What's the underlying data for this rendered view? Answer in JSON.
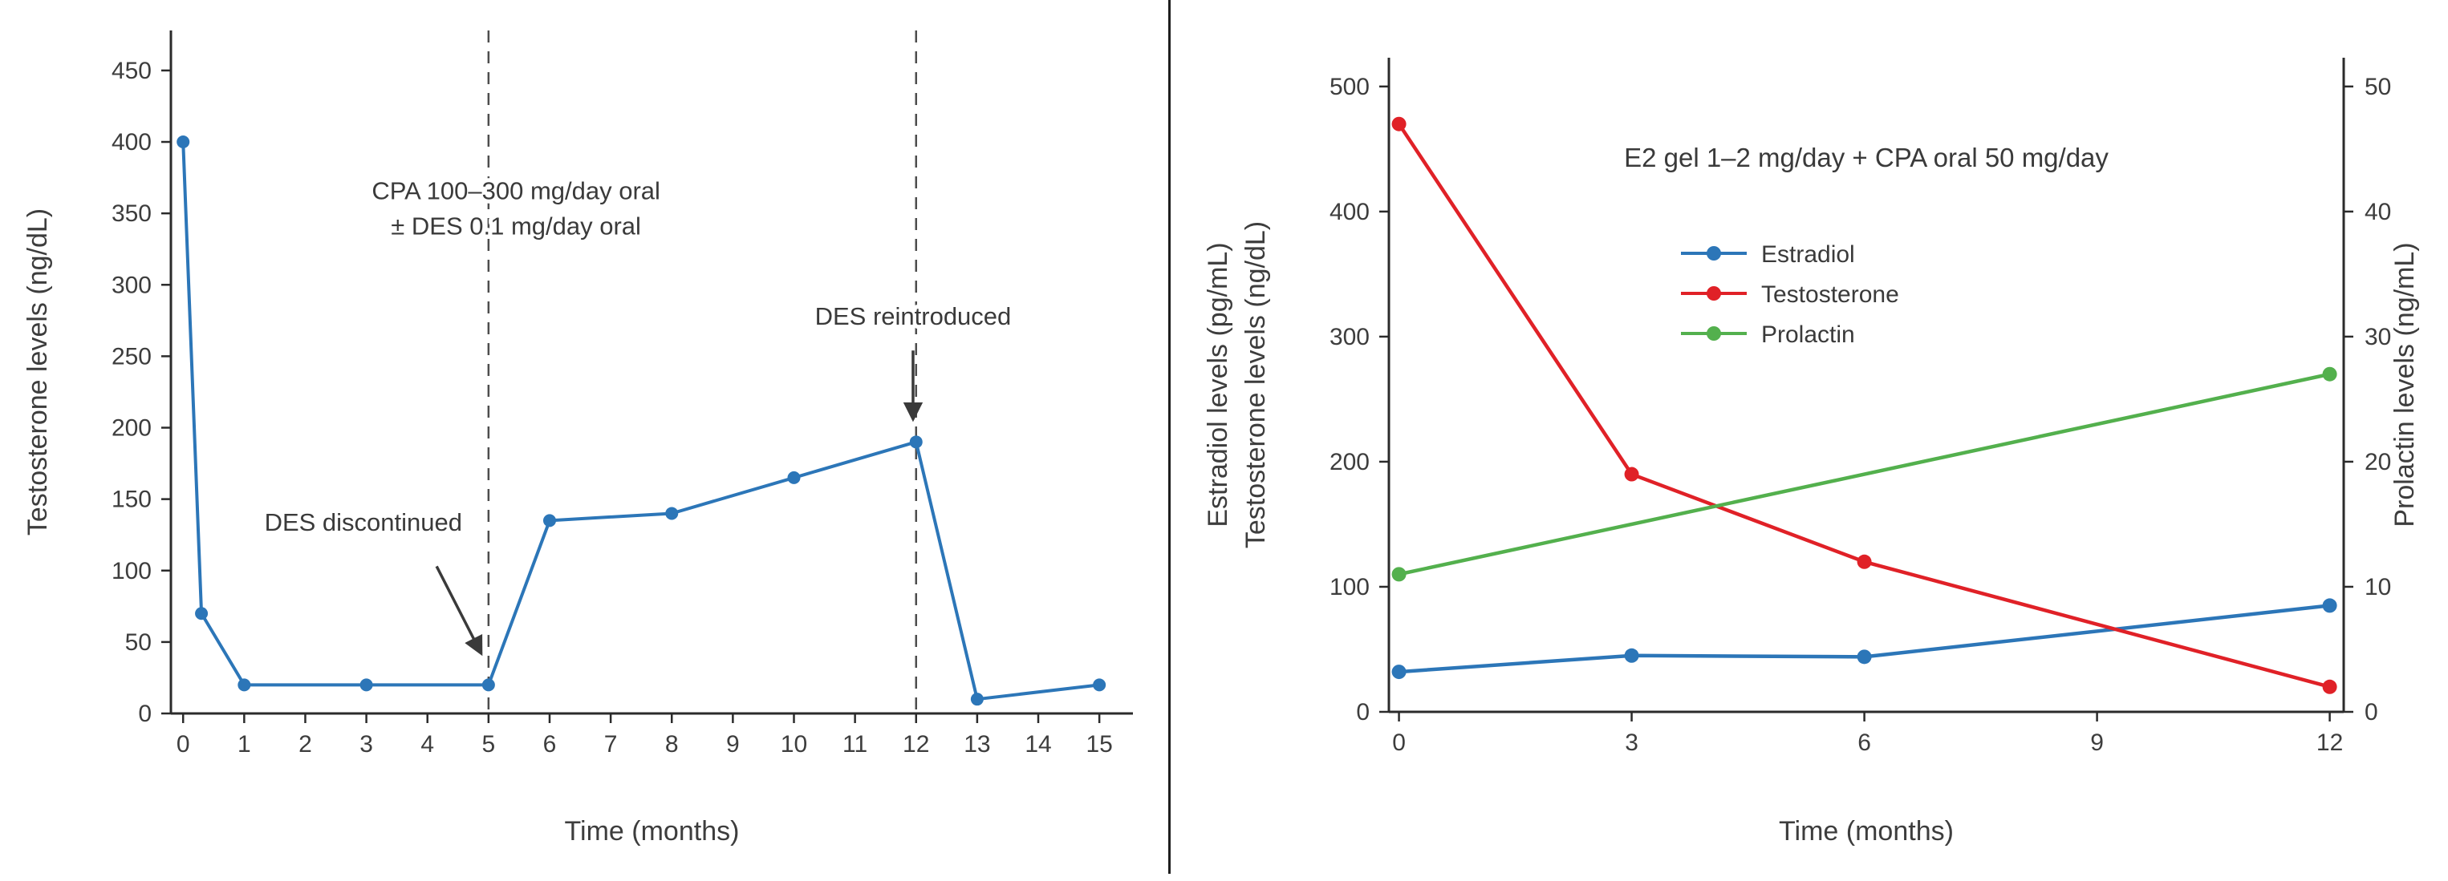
{
  "figure": {
    "background": "#ffffff",
    "divider_color": "#1f1f1f"
  },
  "chart_data": [
    {
      "id": "testosterone-monotherapy-chart",
      "type": "line",
      "title": "",
      "xlabel": "Time (months)",
      "ylabel": "Testosterone levels (ng/dL)",
      "xlim": [
        -0.2,
        15.55
      ],
      "ylim": [
        0,
        478
      ],
      "xticks": [
        0,
        1,
        2,
        3,
        4,
        5,
        6,
        7,
        8,
        9,
        10,
        11,
        12,
        13,
        14,
        15
      ],
      "yticks": [
        0,
        50,
        100,
        150,
        200,
        250,
        300,
        350,
        400,
        450
      ],
      "grid": false,
      "legend": false,
      "series": [
        {
          "name": "Testosterone",
          "color": "#2c76b8",
          "axis": "left",
          "x": [
            0,
            0.3,
            1,
            3,
            5,
            6,
            8,
            10,
            12,
            13,
            15
          ],
          "y": [
            400,
            70,
            20,
            20,
            20,
            135,
            140,
            165,
            190,
            10,
            20
          ]
        }
      ],
      "vlines": [
        5,
        12
      ],
      "annotations": [
        {
          "text": "CPA 100–300 mg/day oral\n± DES 0.1 mg/day oral",
          "x": 5.45,
          "y": 360
        },
        {
          "text": "DES discontinued",
          "x": 2.95,
          "y": 128,
          "arrow": {
            "from": [
              4.15,
              103
            ],
            "to": [
              4.88,
              42
            ]
          }
        },
        {
          "text": "DES reintroduced",
          "x": 11.95,
          "y": 272,
          "arrow": {
            "from": [
              11.95,
              254
            ],
            "to": [
              11.95,
              206
            ]
          }
        }
      ]
    },
    {
      "id": "combination-therapy-chart",
      "type": "line",
      "title": "E2 gel 1–2 mg/day + CPA oral 50 mg/day",
      "xlabel": "Time (months)",
      "ylabel": "Estradiol levels (pg/mL)\nTestosterone levels (ng/dL)",
      "y2label": "Prolactin levels (ng/mL)",
      "xlim": [
        -0.13,
        12.18
      ],
      "ylim": [
        0,
        523
      ],
      "y2lim": [
        0,
        52.3
      ],
      "xticks": [
        0,
        3,
        6,
        9,
        12
      ],
      "yticks": [
        0,
        100,
        200,
        300,
        400,
        500
      ],
      "y2ticks": [
        0,
        10,
        20,
        30,
        40,
        50
      ],
      "grid": false,
      "legend": true,
      "series": [
        {
          "name": "Estradiol",
          "color": "#2c76b8",
          "axis": "left",
          "x": [
            0,
            3,
            6,
            12
          ],
          "y": [
            32,
            45,
            44,
            85
          ]
        },
        {
          "name": "Testosterone",
          "color": "#e02127",
          "axis": "left",
          "x": [
            0,
            3,
            6,
            12
          ],
          "y": [
            470,
            190,
            120,
            20
          ]
        },
        {
          "name": "Prolactin",
          "color": "#53b04d",
          "axis": "right",
          "x": [
            0,
            12
          ],
          "y": [
            11,
            27
          ]
        }
      ],
      "vlines": [],
      "annotations": []
    }
  ]
}
